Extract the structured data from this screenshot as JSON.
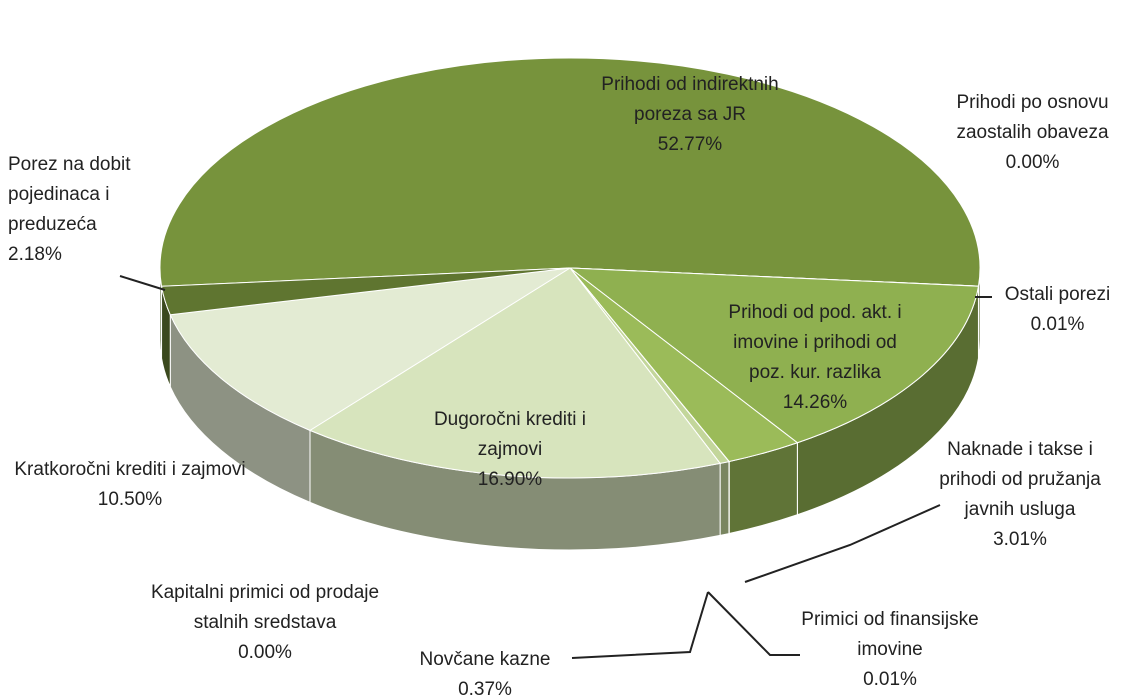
{
  "chart_data": {
    "type": "pie3d",
    "categories": [
      "Prihodi od indirektnih poreza sa JR",
      "Prihodi po osnovu zaostalih obaveza",
      "Ostali porezi",
      "Prihodi od pod. akt. i imovine i prihodi od poz. kur. razlika",
      "Naknade i takse i prihodi od pružanja javnih usluga",
      "Primici od finansijske imovine",
      "Novčane kazne",
      "Kapitalni primici od prodaje stalnih sredstava",
      "Dugoročni krediti i zajmovi",
      "Kratkoročni krediti i zajmovi",
      "Porez na dobit pojedinaca i preduzeća"
    ],
    "values": [
      52.77,
      0.0,
      0.01,
      14.26,
      3.01,
      0.01,
      0.37,
      0.0,
      16.9,
      10.5,
      2.18
    ],
    "value_labels": [
      "52.77%",
      "0.00%",
      "0.01%",
      "14.26%",
      "3.01%",
      "0.01%",
      "0.37%",
      "0.00%",
      "16.90%",
      "10.50%",
      "2.18%"
    ],
    "colors": [
      "#77933c",
      "#77933c",
      "#77933c",
      "#8fb050",
      "#9bbb59",
      "#c3d69b",
      "#c3d69b",
      "#d7e4bd",
      "#d7e4bd",
      "#e3ebd3",
      "#5f7530"
    ]
  }
}
